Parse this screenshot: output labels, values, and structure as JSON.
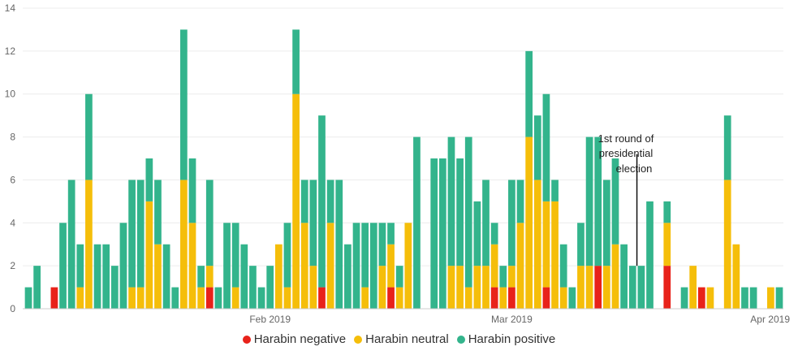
{
  "chart_data": {
    "type": "bar",
    "stacked": true,
    "x_range": [
      "2019-01-04",
      "2019-04-01"
    ],
    "x": [
      "2019-01-04",
      "2019-01-05",
      "2019-01-06",
      "2019-01-07",
      "2019-01-08",
      "2019-01-09",
      "2019-01-10",
      "2019-01-11",
      "2019-01-12",
      "2019-01-13",
      "2019-01-14",
      "2019-01-15",
      "2019-01-16",
      "2019-01-17",
      "2019-01-18",
      "2019-01-19",
      "2019-01-20",
      "2019-01-21",
      "2019-01-22",
      "2019-01-23",
      "2019-01-24",
      "2019-01-25",
      "2019-01-26",
      "2019-01-27",
      "2019-01-28",
      "2019-01-29",
      "2019-01-30",
      "2019-01-31",
      "2019-02-01",
      "2019-02-02",
      "2019-02-03",
      "2019-02-04",
      "2019-02-05",
      "2019-02-06",
      "2019-02-07",
      "2019-02-08",
      "2019-02-09",
      "2019-02-10",
      "2019-02-11",
      "2019-02-12",
      "2019-02-13",
      "2019-02-14",
      "2019-02-15",
      "2019-02-16",
      "2019-02-17",
      "2019-02-18",
      "2019-02-19",
      "2019-02-20",
      "2019-02-21",
      "2019-02-22",
      "2019-02-23",
      "2019-02-24",
      "2019-02-25",
      "2019-02-26",
      "2019-02-27",
      "2019-02-28",
      "2019-03-01",
      "2019-03-02",
      "2019-03-03",
      "2019-03-04",
      "2019-03-05",
      "2019-03-06",
      "2019-03-07",
      "2019-03-08",
      "2019-03-09",
      "2019-03-10",
      "2019-03-11",
      "2019-03-12",
      "2019-03-13",
      "2019-03-14",
      "2019-03-15",
      "2019-03-16",
      "2019-03-17",
      "2019-03-18",
      "2019-03-19",
      "2019-03-20",
      "2019-03-21",
      "2019-03-22",
      "2019-03-23",
      "2019-03-24",
      "2019-03-25",
      "2019-03-26",
      "2019-03-27",
      "2019-03-28",
      "2019-03-29",
      "2019-03-30",
      "2019-03-31",
      "2019-04-01"
    ],
    "series": [
      {
        "name": "Harabin negative",
        "color": "#e8221a",
        "values": [
          0,
          0,
          0,
          1,
          0,
          0,
          0,
          0,
          0,
          0,
          0,
          0,
          0,
          0,
          0,
          0,
          0,
          0,
          0,
          0,
          0,
          1,
          0,
          0,
          0,
          0,
          0,
          0,
          0,
          0,
          0,
          0,
          0,
          0,
          1,
          0,
          0,
          0,
          0,
          0,
          0,
          0,
          1,
          0,
          0,
          0,
          0,
          0,
          0,
          0,
          0,
          0,
          0,
          0,
          1,
          0,
          1,
          0,
          0,
          0,
          1,
          0,
          0,
          0,
          0,
          0,
          2,
          0,
          0,
          0,
          0,
          0,
          0,
          0,
          2,
          0,
          0,
          0,
          1,
          0,
          0,
          0,
          0,
          0,
          0,
          0,
          0,
          0
        ]
      },
      {
        "name": "Harabin neutral",
        "color": "#f5be0a",
        "values": [
          0,
          0,
          0,
          0,
          0,
          0,
          1,
          6,
          0,
          0,
          0,
          0,
          1,
          1,
          5,
          3,
          0,
          0,
          6,
          4,
          1,
          1,
          0,
          0,
          1,
          0,
          0,
          0,
          0,
          3,
          1,
          10,
          4,
          2,
          0,
          4,
          0,
          0,
          0,
          1,
          0,
          2,
          2,
          1,
          4,
          0,
          0,
          0,
          0,
          2,
          2,
          1,
          2,
          2,
          2,
          1,
          1,
          4,
          8,
          6,
          4,
          5,
          1,
          0,
          2,
          2,
          0,
          2,
          3,
          0,
          0,
          0,
          0,
          0,
          2,
          0,
          0,
          2,
          0,
          1,
          0,
          6,
          3,
          0,
          0,
          0,
          1,
          0
        ]
      },
      {
        "name": "Harabin positive",
        "color": "#33b48c",
        "values": [
          1,
          2,
          0,
          0,
          4,
          6,
          2,
          4,
          3,
          3,
          2,
          4,
          5,
          5,
          2,
          3,
          3,
          1,
          7,
          3,
          1,
          4,
          1,
          4,
          3,
          3,
          2,
          1,
          2,
          0,
          3,
          3,
          2,
          4,
          8,
          2,
          6,
          3,
          4,
          3,
          4,
          2,
          1,
          1,
          0,
          8,
          0,
          7,
          7,
          6,
          5,
          7,
          3,
          4,
          1,
          1,
          4,
          2,
          4,
          3,
          5,
          1,
          2,
          1,
          2,
          6,
          6,
          4,
          4,
          3,
          2,
          2,
          5,
          0,
          1,
          0,
          1,
          0,
          0,
          0,
          0,
          3,
          0,
          1,
          1,
          0,
          0,
          1
        ]
      }
    ],
    "ylim": [
      0,
      14
    ],
    "yticks": [
      0,
      2,
      4,
      6,
      8,
      10,
      12,
      14
    ],
    "xtick_labels": [
      {
        "date": "2019-02-01",
        "label": "Feb 2019"
      },
      {
        "date": "2019-03-01",
        "label": "Mar 2019"
      },
      {
        "date": "2019-04-01",
        "label": "Apr 2019"
      }
    ],
    "grid": true,
    "legend_position": "bottom-center",
    "annotation": {
      "lines": [
        "1st round of",
        "presidential",
        "election"
      ],
      "date": "2019-03-16",
      "y_from": 2,
      "y_to": 7.2
    }
  }
}
